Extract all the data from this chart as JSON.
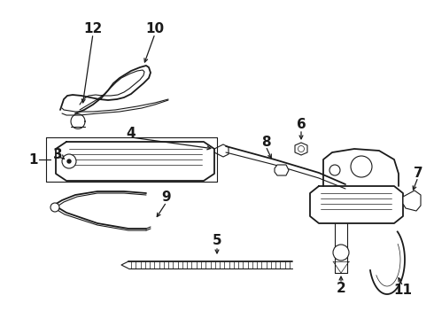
{
  "bg_color": "#ffffff",
  "line_color": "#1a1a1a",
  "label_fontsize": 11,
  "label_fontweight": "bold",
  "figsize": [
    4.9,
    3.6
  ],
  "dpi": 100
}
